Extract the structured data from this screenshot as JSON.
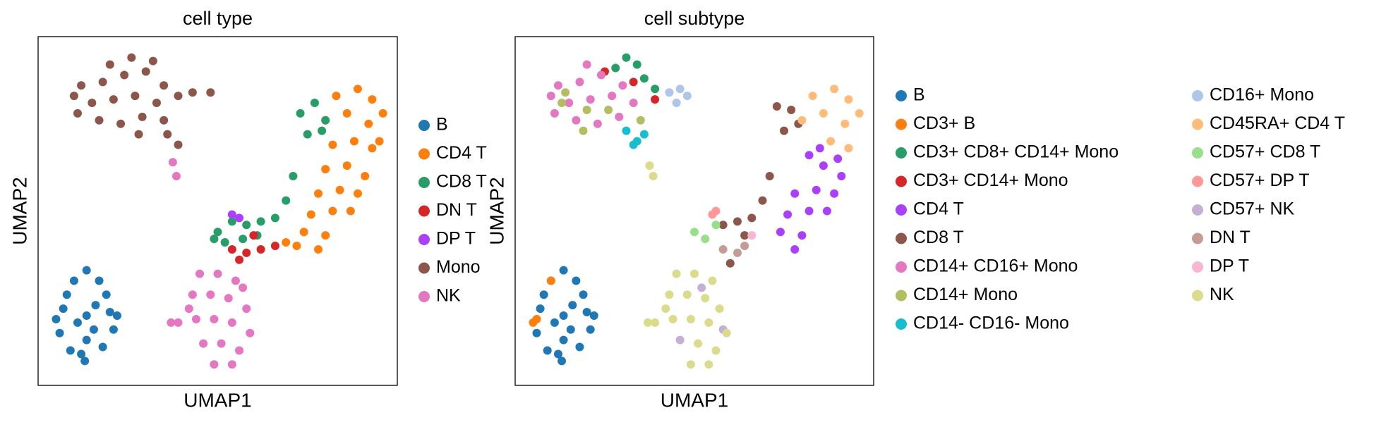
{
  "chart_data": [
    {
      "type": "scatter",
      "title": "cell type",
      "xlabel": "UMAP1",
      "ylabel": "UMAP2",
      "xlim": [
        0,
        10
      ],
      "ylim": [
        0,
        10
      ],
      "legend": "right",
      "legend_columns": 1,
      "series": [
        {
          "name": "B",
          "color": "#1f77b4",
          "x": [
            1.35,
            0.7,
            2.0,
            1.0,
            1.7,
            0.6,
            2.1,
            1.35,
            0.9,
            1.8,
            1.3,
            0.8,
            1.9,
            1.35,
            1.1,
            1.6,
            0.5,
            2.2,
            1.2,
            1.55
          ],
          "y": [
            2.0,
            2.2,
            2.1,
            3.0,
            3.0,
            1.5,
            1.6,
            3.3,
            1.0,
            1.1,
            0.7,
            2.6,
            2.6,
            1.3,
            1.8,
            2.3,
            1.9,
            2.0,
            0.9,
            1.6
          ]
        },
        {
          "name": "CD4 T",
          "color": "#ff7f0e",
          "x": [
            8.3,
            8.9,
            9.3,
            8.0,
            8.6,
            9.2,
            8.2,
            8.8,
            9.3,
            8.0,
            8.6,
            9.1,
            7.8,
            8.4,
            8.9,
            7.6,
            8.2,
            8.7,
            7.4,
            8.0,
            7.2,
            7.8,
            6.9,
            9.6,
            9.5
          ],
          "y": [
            8.3,
            8.5,
            8.2,
            7.6,
            7.8,
            7.5,
            6.9,
            7.0,
            6.8,
            6.2,
            6.3,
            6.0,
            5.5,
            5.6,
            5.5,
            4.9,
            5.0,
            5.0,
            4.4,
            4.3,
            4.0,
            3.9,
            4.1,
            7.8,
            7.0
          ]
        },
        {
          "name": "CD8 T",
          "color": "#279e68",
          "x": [
            7.3,
            7.7,
            8.0,
            7.5,
            7.9,
            5.0,
            5.4,
            5.8,
            6.2,
            6.6,
            5.2,
            5.7,
            6.1,
            6.9,
            7.1,
            4.9
          ],
          "y": [
            7.8,
            8.1,
            7.6,
            7.2,
            7.3,
            4.4,
            4.7,
            4.6,
            4.7,
            4.8,
            4.1,
            4.2,
            4.3,
            5.3,
            6.0,
            4.2
          ]
        },
        {
          "name": "DN T",
          "color": "#d62728",
          "x": [
            5.4,
            5.8,
            6.2,
            6.6,
            5.6,
            6.0
          ],
          "y": [
            3.9,
            3.8,
            3.9,
            4.0,
            3.6,
            4.3
          ]
        },
        {
          "name": "DP T",
          "color": "#aa40fc",
          "x": [
            5.4,
            5.6
          ],
          "y": [
            4.9,
            4.8
          ]
        },
        {
          "name": "Mono",
          "color": "#8c564b",
          "x": [
            1.2,
            1.8,
            2.4,
            3.0,
            3.5,
            1.5,
            2.1,
            2.7,
            3.3,
            3.9,
            1.1,
            1.7,
            2.3,
            2.9,
            3.5,
            2.6,
            4.3,
            4.8,
            3.6,
            3.9,
            2.8,
            1.0,
            2.0,
            3.2
          ],
          "y": [
            8.6,
            8.7,
            8.9,
            9.0,
            8.6,
            8.1,
            8.2,
            8.3,
            8.1,
            8.3,
            7.8,
            7.6,
            7.5,
            7.7,
            7.6,
            9.4,
            8.4,
            8.4,
            7.2,
            6.9,
            7.2,
            8.3,
            9.2,
            9.3
          ]
        },
        {
          "name": "NK",
          "color": "#e377c2",
          "x": [
            4.5,
            5.0,
            5.5,
            4.3,
            4.8,
            5.3,
            5.8,
            4.4,
            4.9,
            5.4,
            5.9,
            4.6,
            5.1,
            5.6,
            4.9,
            5.4,
            3.7,
            3.9,
            3.75,
            3.85,
            4.2,
            5.7
          ],
          "y": [
            3.2,
            3.2,
            3.0,
            2.6,
            2.6,
            2.5,
            2.2,
            1.9,
            1.9,
            1.8,
            1.5,
            1.2,
            1.2,
            1.0,
            0.6,
            0.6,
            1.8,
            1.8,
            6.4,
            6.0,
            2.2,
            2.8
          ]
        }
      ]
    },
    {
      "type": "scatter",
      "title": "cell subtype",
      "xlabel": "UMAP1",
      "ylabel": "UMAP2",
      "xlim": [
        0,
        10
      ],
      "ylim": [
        0,
        10
      ],
      "legend": "right",
      "legend_columns": 2,
      "series": [
        {
          "name": "B",
          "color": "#1f77b4",
          "x": [
            1.35,
            0.7,
            2.0,
            1.0,
            1.7,
            0.6,
            2.1,
            1.35,
            0.9,
            1.8,
            1.3,
            0.8,
            1.9,
            1.35,
            1.1,
            1.6,
            2.2,
            1.2,
            1.55
          ],
          "y": [
            2.0,
            2.2,
            2.1,
            3.0,
            3.0,
            1.5,
            1.6,
            3.3,
            1.0,
            1.1,
            0.7,
            2.6,
            2.6,
            1.3,
            1.8,
            2.3,
            2.0,
            0.9,
            1.6
          ]
        },
        {
          "name": "CD3+ B",
          "color": "#ff7f0e",
          "x": [
            0.5,
            0.6,
            1.0
          ],
          "y": [
            1.8,
            1.9,
            3.0
          ]
        },
        {
          "name": "CD3+ CD8+ CD14+ Mono",
          "color": "#279e68",
          "x": [
            2.8,
            3.1,
            3.4,
            3.6,
            3.9
          ],
          "y": [
            9.1,
            9.4,
            9.2,
            8.8,
            8.5
          ]
        },
        {
          "name": "CD3+ CD14+ Mono",
          "color": "#d62728",
          "x": [
            2.5,
            3.3,
            3.9
          ],
          "y": [
            9.0,
            8.7,
            8.2
          ]
        },
        {
          "name": "CD4 T",
          "color": "#aa40fc",
          "x": [
            8.2,
            8.6,
            9.1,
            7.8,
            8.4,
            8.9,
            7.6,
            8.2,
            8.7,
            7.4,
            8.0,
            7.8,
            9.0,
            8.5
          ],
          "y": [
            6.6,
            6.3,
            6.0,
            5.5,
            5.6,
            5.5,
            4.9,
            5.0,
            5.0,
            4.4,
            4.3,
            3.9,
            6.5,
            6.8
          ]
        },
        {
          "name": "CD8 T",
          "color": "#8c564b",
          "x": [
            7.3,
            7.7,
            7.5,
            6.2,
            6.6,
            6.9,
            5.8,
            6.4,
            7.1,
            6.0,
            7.9
          ],
          "y": [
            8.0,
            7.9,
            7.3,
            4.7,
            4.8,
            5.3,
            4.6,
            4.3,
            6.0,
            3.5,
            7.5
          ]
        },
        {
          "name": "CD14+ CD16+ Mono",
          "color": "#e377c2",
          "x": [
            1.2,
            1.8,
            2.4,
            1.5,
            2.1,
            2.7,
            1.1,
            1.7,
            2.3,
            2.9,
            3.3,
            3.0,
            1.0,
            2.0
          ],
          "y": [
            8.6,
            8.7,
            8.9,
            8.1,
            8.2,
            8.3,
            7.8,
            7.6,
            7.5,
            7.7,
            8.1,
            8.6,
            8.3,
            9.2
          ]
        },
        {
          "name": "CD14+ Mono",
          "color": "#b5bd61",
          "x": [
            1.4,
            2.0,
            2.6,
            1.9,
            3.5,
            1.3
          ],
          "y": [
            8.4,
            7.9,
            7.9,
            7.3,
            7.6,
            8.1
          ]
        },
        {
          "name": "CD14- CD16- Mono",
          "color": "#17becf",
          "x": [
            3.1,
            3.4,
            3.6,
            3.3
          ],
          "y": [
            7.3,
            7.0,
            7.2,
            6.9
          ]
        },
        {
          "name": "CD16+ Mono",
          "color": "#aec7e8",
          "x": [
            4.3,
            4.6,
            4.8,
            4.5
          ],
          "y": [
            8.4,
            8.5,
            8.3,
            8.1
          ]
        },
        {
          "name": "CD45RA+ CD4 T",
          "color": "#ffbb78",
          "x": [
            8.3,
            8.9,
            9.3,
            8.0,
            8.6,
            9.2,
            8.8,
            9.3,
            9.6
          ],
          "y": [
            8.3,
            8.5,
            8.2,
            7.6,
            7.8,
            7.5,
            7.0,
            6.8,
            7.8
          ]
        },
        {
          "name": "CD57+ CD8 T",
          "color": "#98df8a",
          "x": [
            5.0,
            5.3,
            5.6
          ],
          "y": [
            4.4,
            4.2,
            4.6
          ]
        },
        {
          "name": "CD57+ DP T",
          "color": "#ff9896",
          "x": [
            5.5,
            5.6
          ],
          "y": [
            4.9,
            5.0
          ]
        },
        {
          "name": "CD57+ NK",
          "color": "#c5b0d5",
          "x": [
            5.8,
            5.2,
            4.6
          ],
          "y": [
            1.6,
            2.8,
            1.3
          ]
        },
        {
          "name": "DN T",
          "color": "#c49c94",
          "x": [
            5.8,
            6.2,
            6.4
          ],
          "y": [
            3.9,
            3.8,
            4.0
          ]
        },
        {
          "name": "DP T",
          "color": "#f7b6d2",
          "x": [
            6.6
          ],
          "y": [
            4.3
          ]
        },
        {
          "name": "NK",
          "color": "#dbdb8d",
          "x": [
            4.5,
            5.0,
            5.5,
            4.3,
            4.8,
            5.3,
            4.4,
            4.9,
            5.4,
            5.9,
            5.1,
            5.6,
            4.9,
            5.4,
            3.7,
            3.9,
            3.85,
            4.2,
            5.7,
            3.75
          ],
          "y": [
            3.2,
            3.2,
            3.0,
            2.6,
            2.6,
            2.5,
            1.9,
            1.9,
            1.8,
            1.5,
            1.2,
            1.0,
            0.6,
            0.6,
            1.8,
            1.8,
            6.0,
            2.2,
            2.2,
            6.3
          ]
        }
      ]
    }
  ]
}
